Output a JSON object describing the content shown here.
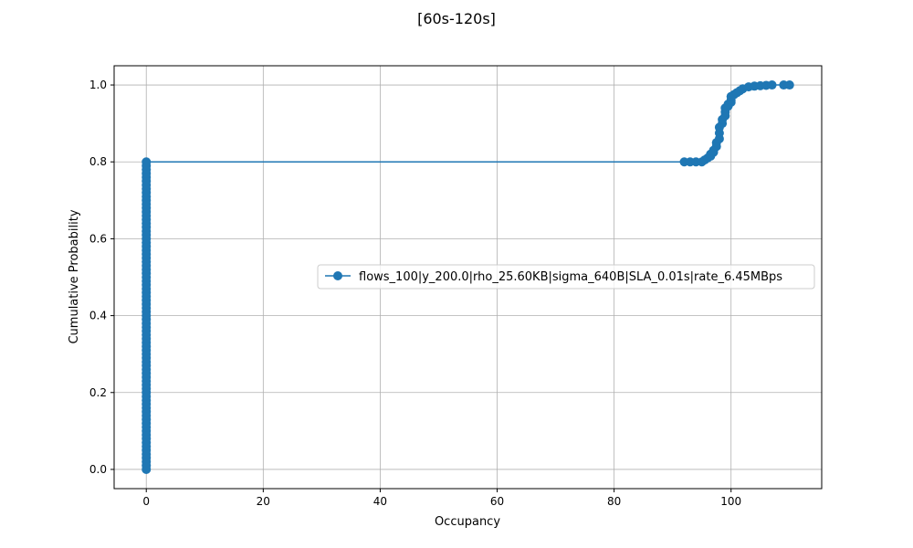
{
  "chart_data": {
    "type": "line",
    "title": "[60s-120s]",
    "xlabel": "Occupancy",
    "ylabel": "Cumulative Probability",
    "xlim": [
      -5.5,
      115.5
    ],
    "ylim": [
      -0.05,
      1.05
    ],
    "xticks": [
      0,
      20,
      40,
      60,
      80,
      100
    ],
    "yticks": [
      0.0,
      0.2,
      0.4,
      0.6,
      0.8,
      1.0
    ],
    "ytick_labels": [
      "0.0",
      "0.2",
      "0.4",
      "0.6",
      "0.8",
      "1.0"
    ],
    "grid": true,
    "legend_position": "center-right",
    "series": [
      {
        "name": "flows_100|y_200.0|rho_25.60KB|sigma_640B|SLA_0.01s|rate_6.45MBps",
        "color": "#1f77b4",
        "marker": "circle",
        "x": [
          0,
          0,
          0,
          0,
          0,
          0,
          0,
          0,
          0,
          0,
          0,
          0,
          0,
          0,
          0,
          0,
          0,
          0,
          0,
          0,
          0,
          0,
          0,
          0,
          0,
          0,
          0,
          0,
          0,
          0,
          0,
          0,
          0,
          0,
          0,
          0,
          0,
          0,
          0,
          0,
          0,
          0,
          0,
          0,
          0,
          0,
          0,
          0,
          0,
          0,
          0,
          0,
          0,
          0,
          0,
          0,
          0,
          0,
          0,
          0,
          0,
          0,
          0,
          0,
          0,
          0,
          0,
          0,
          0,
          0,
          0,
          0,
          0,
          0,
          0,
          0,
          0,
          0,
          0,
          0,
          0,
          92,
          93,
          94,
          95,
          95.5,
          96,
          96.5,
          96.5,
          97,
          97,
          97.5,
          97.5,
          98,
          98,
          98,
          98.5,
          98.5,
          99,
          99,
          99,
          99.5,
          99.5,
          100,
          100,
          100,
          100.5,
          101,
          101.5,
          102,
          103,
          104,
          105,
          106,
          107,
          109,
          110
        ],
        "y": [
          0.0,
          0.01,
          0.02,
          0.03,
          0.04,
          0.05,
          0.06,
          0.07,
          0.08,
          0.09,
          0.1,
          0.11,
          0.12,
          0.13,
          0.14,
          0.15,
          0.16,
          0.17,
          0.18,
          0.19,
          0.2,
          0.21,
          0.22,
          0.23,
          0.24,
          0.25,
          0.26,
          0.27,
          0.28,
          0.29,
          0.3,
          0.31,
          0.32,
          0.33,
          0.34,
          0.35,
          0.36,
          0.37,
          0.38,
          0.39,
          0.4,
          0.41,
          0.42,
          0.43,
          0.44,
          0.45,
          0.46,
          0.47,
          0.48,
          0.49,
          0.5,
          0.51,
          0.52,
          0.53,
          0.54,
          0.55,
          0.56,
          0.57,
          0.58,
          0.59,
          0.6,
          0.61,
          0.62,
          0.63,
          0.64,
          0.65,
          0.66,
          0.67,
          0.68,
          0.69,
          0.7,
          0.71,
          0.72,
          0.73,
          0.74,
          0.75,
          0.76,
          0.77,
          0.78,
          0.79,
          0.8,
          0.8,
          0.8,
          0.8,
          0.8,
          0.805,
          0.81,
          0.815,
          0.82,
          0.825,
          0.83,
          0.84,
          0.85,
          0.86,
          0.875,
          0.89,
          0.9,
          0.91,
          0.92,
          0.93,
          0.94,
          0.945,
          0.95,
          0.955,
          0.96,
          0.97,
          0.975,
          0.98,
          0.985,
          0.99,
          0.995,
          0.997,
          0.998,
          0.999,
          1.0,
          1.0,
          1.0
        ]
      }
    ]
  }
}
